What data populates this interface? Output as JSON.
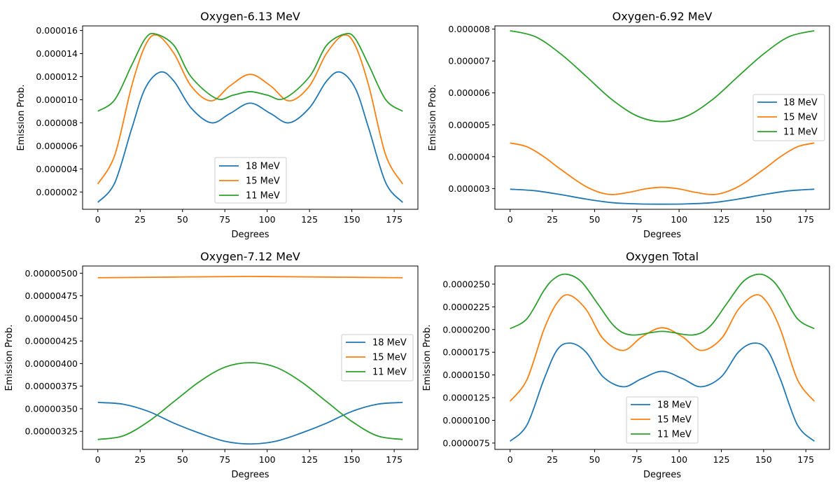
{
  "chart_data": [
    {
      "type": "line",
      "title": "Oxygen-6.13 MeV",
      "xlabel": "Degrees",
      "ylabel": "Emission Prob.",
      "xlim": [
        -9,
        189
      ],
      "ylim": [
        5e-07,
        1.64e-05
      ],
      "xticks": [
        0,
        25,
        50,
        75,
        100,
        125,
        150,
        175
      ],
      "xtick_labels": [
        "0",
        "25",
        "50",
        "75",
        "100",
        "125",
        "150",
        "175"
      ],
      "yticks": [
        2e-06,
        4e-06,
        6e-06,
        8e-06,
        1e-05,
        1.2e-05,
        1.4e-05,
        1.6e-05
      ],
      "ytick_labels": [
        "0.000002",
        "0.000004",
        "0.000006",
        "0.000008",
        "0.000010",
        "0.000012",
        "0.000014",
        "0.000016"
      ],
      "legend_position": "lower-center",
      "series": [
        {
          "name": "18 MeV",
          "color": "#1f77b4",
          "x": [
            0,
            10,
            20,
            28,
            37,
            45,
            55,
            67,
            78,
            90,
            102,
            113,
            125,
            135,
            143,
            152,
            160,
            170,
            180
          ],
          "values": [
            1.1e-06,
            2.8e-06,
            7.5e-06,
            1.1e-05,
            1.24e-05,
            1.16e-05,
            9.3e-06,
            8e-06,
            8.8e-06,
            9.7e-06,
            8.8e-06,
            8e-06,
            9.3e-06,
            1.16e-05,
            1.24e-05,
            1.1e-05,
            7.5e-06,
            2.8e-06,
            1.1e-06
          ]
        },
        {
          "name": "15 MeV",
          "color": "#ff7f0e",
          "x": [
            0,
            10,
            20,
            28,
            35,
            45,
            55,
            67,
            78,
            90,
            102,
            113,
            125,
            135,
            145,
            152,
            160,
            170,
            180
          ],
          "values": [
            2.7e-06,
            5.2e-06,
            1.12e-05,
            1.47e-05,
            1.56e-05,
            1.4e-05,
            1.12e-05,
            9.9e-06,
            1.12e-05,
            1.22e-05,
            1.12e-05,
            9.9e-06,
            1.12e-05,
            1.4e-05,
            1.56e-05,
            1.47e-05,
            1.12e-05,
            5.2e-06,
            2.7e-06
          ]
        },
        {
          "name": "11 MeV",
          "color": "#2ca02c",
          "x": [
            0,
            10,
            20,
            28,
            34,
            45,
            55,
            70,
            80,
            90,
            100,
            110,
            125,
            135,
            146,
            152,
            160,
            170,
            180
          ],
          "values": [
            9e-06,
            1e-05,
            1.3e-05,
            1.53e-05,
            1.57e-05,
            1.47e-05,
            1.2e-05,
            1.01e-05,
            1.04e-05,
            1.07e-05,
            1.04e-05,
            1.01e-05,
            1.2e-05,
            1.47e-05,
            1.57e-05,
            1.53e-05,
            1.3e-05,
            1e-05,
            9e-06
          ]
        }
      ]
    },
    {
      "type": "line",
      "title": "Oxygen-6.92 MeV",
      "xlabel": "Degrees",
      "ylabel": "Emission Prob.",
      "xlim": [
        -9,
        189
      ],
      "ylim": [
        2.35e-06,
        8.1e-06
      ],
      "xticks": [
        0,
        25,
        50,
        75,
        100,
        125,
        150,
        175
      ],
      "xtick_labels": [
        "0",
        "25",
        "50",
        "75",
        "100",
        "125",
        "150",
        "175"
      ],
      "yticks": [
        3e-06,
        4e-06,
        5e-06,
        6e-06,
        7e-06,
        8e-06
      ],
      "ytick_labels": [
        "0.000003",
        "0.000004",
        "0.000005",
        "0.000006",
        "0.000007",
        "0.000008"
      ],
      "legend_position": "center-right",
      "series": [
        {
          "name": "18 MeV",
          "color": "#1f77b4",
          "x": [
            0,
            15,
            30,
            45,
            60,
            75,
            90,
            105,
            120,
            135,
            150,
            165,
            180
          ],
          "values": [
            2.98e-06,
            2.93e-06,
            2.81e-06,
            2.67e-06,
            2.56e-06,
            2.52e-06,
            2.51e-06,
            2.52e-06,
            2.56e-06,
            2.67e-06,
            2.81e-06,
            2.93e-06,
            2.98e-06
          ]
        },
        {
          "name": "15 MeV",
          "color": "#ff7f0e",
          "x": [
            0,
            10,
            20,
            30,
            45,
            58,
            70,
            80,
            90,
            100,
            110,
            122,
            135,
            150,
            160,
            170,
            180
          ],
          "values": [
            4.43e-06,
            4.31e-06,
            4e-06,
            3.6e-06,
            3.06e-06,
            2.82e-06,
            2.88e-06,
            2.99e-06,
            3.04e-06,
            2.99e-06,
            2.88e-06,
            2.82e-06,
            3.06e-06,
            3.6e-06,
            4e-06,
            4.31e-06,
            4.43e-06
          ]
        },
        {
          "name": "11 MeV",
          "color": "#2ca02c",
          "x": [
            0,
            15,
            30,
            45,
            60,
            75,
            90,
            105,
            120,
            135,
            150,
            165,
            180
          ],
          "values": [
            7.95e-06,
            7.76e-06,
            7.22e-06,
            6.52e-06,
            5.8e-06,
            5.28e-06,
            5.1e-06,
            5.28e-06,
            5.8e-06,
            6.52e-06,
            7.22e-06,
            7.76e-06,
            7.95e-06
          ]
        }
      ]
    },
    {
      "type": "line",
      "title": "Oxygen-7.12 MeV",
      "xlabel": "Degrees",
      "ylabel": "Emission Prob.",
      "xlim": [
        -9,
        189
      ],
      "ylim": [
        3.05e-06,
        5.08e-06
      ],
      "xticks": [
        0,
        25,
        50,
        75,
        100,
        125,
        150,
        175
      ],
      "xtick_labels": [
        "0",
        "25",
        "50",
        "75",
        "100",
        "125",
        "150",
        "175"
      ],
      "yticks": [
        3.25e-06,
        3.5e-06,
        3.75e-06,
        4e-06,
        4.25e-06,
        4.5e-06,
        4.75e-06,
        5e-06
      ],
      "ytick_labels": [
        "0.00000325",
        "0.00000350",
        "0.00000375",
        "0.00000400",
        "0.00000425",
        "0.00000450",
        "0.00000475",
        "0.00000500"
      ],
      "legend_position": "center-right",
      "series": [
        {
          "name": "18 MeV",
          "color": "#1f77b4",
          "x": [
            0,
            15,
            30,
            45,
            60,
            75,
            90,
            105,
            120,
            135,
            150,
            165,
            180
          ],
          "values": [
            3.57e-06,
            3.55e-06,
            3.47e-06,
            3.34e-06,
            3.23e-06,
            3.14e-06,
            3.11e-06,
            3.14e-06,
            3.23e-06,
            3.34e-06,
            3.47e-06,
            3.55e-06,
            3.57e-06
          ]
        },
        {
          "name": "15 MeV",
          "color": "#ff7f0e",
          "x": [
            0,
            30,
            60,
            90,
            120,
            150,
            180
          ],
          "values": [
            4.95e-06,
            4.955e-06,
            4.96e-06,
            4.965e-06,
            4.96e-06,
            4.955e-06,
            4.95e-06
          ]
        },
        {
          "name": "11 MeV",
          "color": "#2ca02c",
          "x": [
            0,
            15,
            30,
            45,
            60,
            75,
            90,
            105,
            120,
            135,
            150,
            165,
            180
          ],
          "values": [
            3.16e-06,
            3.2e-06,
            3.36e-06,
            3.58e-06,
            3.8e-06,
            3.96e-06,
            4.01e-06,
            3.96e-06,
            3.8e-06,
            3.58e-06,
            3.36e-06,
            3.2e-06,
            3.16e-06
          ]
        }
      ]
    },
    {
      "type": "line",
      "title": "Oxygen Total",
      "xlabel": "Degrees",
      "ylabel": "Emission Prob.",
      "xlim": [
        -9,
        189
      ],
      "ylim": [
        6.8e-06,
        2.7e-05
      ],
      "xticks": [
        0,
        25,
        50,
        75,
        100,
        125,
        150,
        175
      ],
      "xtick_labels": [
        "0",
        "25",
        "50",
        "75",
        "100",
        "125",
        "150",
        "175"
      ],
      "yticks": [
        7.5e-06,
        1e-05,
        1.25e-05,
        1.5e-05,
        1.75e-05,
        2e-05,
        2.25e-05,
        2.5e-05
      ],
      "ytick_labels": [
        "0.0000075",
        "0.0000100",
        "0.0000125",
        "0.0000150",
        "0.0000175",
        "0.0000200",
        "0.0000225",
        "0.0000250"
      ],
      "legend_position": "lower-center",
      "series": [
        {
          "name": "18 MeV",
          "color": "#1f77b4",
          "x": [
            0,
            10,
            20,
            28,
            36,
            45,
            55,
            67,
            78,
            90,
            102,
            113,
            125,
            135,
            144,
            152,
            160,
            170,
            180
          ],
          "values": [
            7.7e-06,
            9.5e-06,
            1.45e-05,
            1.78e-05,
            1.85e-05,
            1.75e-05,
            1.48e-05,
            1.37e-05,
            1.46e-05,
            1.54e-05,
            1.46e-05,
            1.37e-05,
            1.48e-05,
            1.75e-05,
            1.85e-05,
            1.78e-05,
            1.45e-05,
            9.5e-06,
            7.7e-06
          ]
        },
        {
          "name": "15 MeV",
          "color": "#ff7f0e",
          "x": [
            0,
            10,
            20,
            28,
            35,
            45,
            55,
            67,
            78,
            90,
            102,
            113,
            125,
            135,
            145,
            152,
            160,
            170,
            180
          ],
          "values": [
            1.21e-05,
            1.45e-05,
            2e-05,
            2.3e-05,
            2.38e-05,
            2.22e-05,
            1.9e-05,
            1.77e-05,
            1.92e-05,
            2.02e-05,
            1.92e-05,
            1.77e-05,
            1.9e-05,
            2.22e-05,
            2.38e-05,
            2.3e-05,
            2e-05,
            1.45e-05,
            1.21e-05
          ]
        },
        {
          "name": "11 MeV",
          "color": "#2ca02c",
          "x": [
            0,
            10,
            20,
            26,
            33,
            42,
            52,
            62,
            72,
            90,
            108,
            118,
            128,
            138,
            147,
            154,
            160,
            170,
            180
          ],
          "values": [
            2.01e-05,
            2.12e-05,
            2.43e-05,
            2.56e-05,
            2.61e-05,
            2.53e-05,
            2.28e-05,
            2.03e-05,
            1.94e-05,
            1.98e-05,
            1.94e-05,
            2.03e-05,
            2.28e-05,
            2.53e-05,
            2.61e-05,
            2.56e-05,
            2.43e-05,
            2.12e-05,
            2.01e-05
          ]
        }
      ]
    }
  ]
}
